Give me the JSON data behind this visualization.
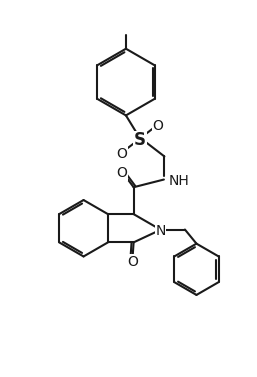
{
  "background_color": "#ffffff",
  "line_color": "#1a1a1a",
  "line_width": 1.5,
  "figsize": [
    2.57,
    3.77
  ],
  "dpi": 100,
  "xlim": [
    0,
    10
  ],
  "ylim": [
    0,
    14.7
  ]
}
